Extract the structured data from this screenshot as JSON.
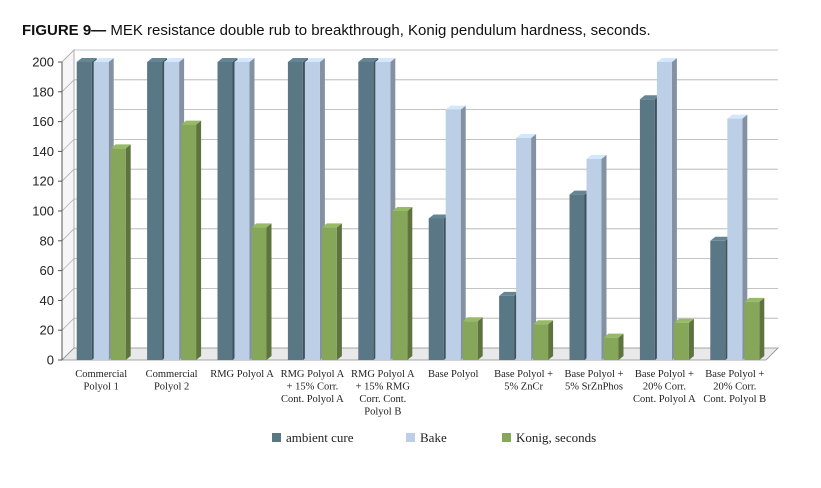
{
  "chart_data": {
    "type": "bar",
    "title_prefix": "FIGURE 9— ",
    "title_main": "MEK resistance double rub to breakthrough, Konig pendulum hardness, seconds.",
    "xlabel": "",
    "ylabel": "",
    "ylim": [
      0,
      200
    ],
    "yticks": [
      0,
      20,
      40,
      60,
      80,
      100,
      120,
      140,
      160,
      180,
      200
    ],
    "grid": true,
    "legend_position": "bottom",
    "categories": [
      [
        "Commercial",
        "Polyol 1"
      ],
      [
        "Commercial",
        "Polyol 2"
      ],
      [
        "RMG Polyol A"
      ],
      [
        "RMG Polyol A",
        "+ 15% Corr.",
        "Cont. Polyol A"
      ],
      [
        "RMG Polyol A",
        "+ 15% RMG",
        "Corr. Cont.",
        "Polyol B"
      ],
      [
        "Base Polyol"
      ],
      [
        "Base Polyol +",
        "5% ZnCr"
      ],
      [
        "Base Polyol +",
        "5% SrZnPhos"
      ],
      [
        "Base Polyol +",
        "20% Corr.",
        "Cont. Polyol A"
      ],
      [
        "Base Polyol +",
        "20% Corr.",
        "Cont. Polyol B"
      ]
    ],
    "series": [
      {
        "name": "ambient cure",
        "color": "#5a7785",
        "values": [
          200,
          200,
          200,
          200,
          200,
          95,
          43,
          111,
          175,
          80
        ]
      },
      {
        "name": "Bake",
        "color": "#bccfe6",
        "values": [
          200,
          200,
          200,
          200,
          200,
          168,
          149,
          135,
          200,
          162
        ]
      },
      {
        "name": "Konig, seconds",
        "color": "#86a65a",
        "values": [
          142,
          158,
          89,
          89,
          100,
          26,
          24,
          15,
          25,
          39
        ]
      }
    ]
  }
}
